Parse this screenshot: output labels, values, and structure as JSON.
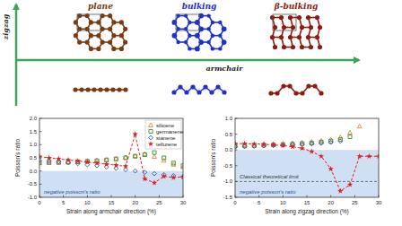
{
  "diagram": {
    "axes": {
      "vertical": "zigzag",
      "horizontal": "armchair"
    },
    "structures": [
      {
        "label": "plane",
        "color": "#7a3b12"
      },
      {
        "label": "bulking",
        "color": "#1f2fd0"
      },
      {
        "label": "β-bulking",
        "color": "#8c1d10"
      }
    ]
  },
  "chart_data": [
    {
      "type": "line",
      "x_label": "Strain along armchair direction (%)",
      "y_label": "Poisson's ratio",
      "x": [
        0,
        2,
        4,
        6,
        8,
        10,
        12,
        14,
        16,
        18,
        20,
        22,
        24,
        26,
        28,
        30
      ],
      "xlim": [
        0,
        30
      ],
      "xticks": [
        0,
        5,
        10,
        15,
        20,
        25,
        30
      ],
      "ylim": [
        -1,
        2
      ],
      "yticks": [
        {
          "value": -1,
          "label": "-1.0"
        },
        {
          "value": -0.5,
          "label": "-0.5"
        },
        {
          "value": 0,
          "label": "0.0"
        },
        {
          "value": 0.5,
          "label": "0.5"
        },
        {
          "value": 1,
          "label": "1.0"
        },
        {
          "value": 1.5,
          "label": "1.5"
        },
        {
          "value": 2,
          "label": "2.0"
        }
      ],
      "grid": false,
      "legend": "top-right",
      "negative_region": {
        "text": "negative poisson's ratio",
        "below": 0
      },
      "series": [
        {
          "name": "silicene",
          "color": "#e08a2c",
          "marker": "triangle",
          "line_style": "none",
          "values": [
            0.3,
            0.31,
            0.32,
            0.33,
            0.35,
            0.37,
            0.4,
            0.43,
            0.47,
            0.52,
            0.58,
            0.65,
            0.55,
            0.4,
            0.25,
            0.15
          ]
        },
        {
          "name": "germanene",
          "color": "#3a8a3a",
          "marker": "square",
          "line_style": "none",
          "values": [
            0.32,
            0.33,
            0.33,
            0.34,
            0.35,
            0.37,
            0.39,
            0.42,
            0.46,
            0.5,
            0.56,
            0.62,
            0.7,
            0.5,
            0.3,
            0.2
          ]
        },
        {
          "name": "stanene",
          "color": "#3050c0",
          "marker": "diamond",
          "line_style": "none",
          "values": [
            0.4,
            0.38,
            0.35,
            0.32,
            0.28,
            0.24,
            0.2,
            0.15,
            0.1,
            0.05,
            0.0,
            -0.05,
            -0.1,
            -0.14,
            -0.18,
            -0.22
          ]
        },
        {
          "name": "tellurene",
          "color": "#e02020",
          "marker": "star",
          "line_style": "dashed",
          "values": [
            0.55,
            0.5,
            0.46,
            0.42,
            0.38,
            0.34,
            0.3,
            0.26,
            0.22,
            0.18,
            1.4,
            -0.3,
            -0.45,
            -0.2,
            -0.25,
            -0.22
          ]
        }
      ]
    },
    {
      "type": "line",
      "x_label": "Strain along zigzag direction (%)",
      "y_label": "Poisson's ratio",
      "x": [
        0,
        2,
        4,
        6,
        8,
        10,
        12,
        14,
        16,
        18,
        20,
        22,
        24,
        26,
        28,
        30
      ],
      "xlim": [
        0,
        30
      ],
      "xticks": [
        0,
        5,
        10,
        15,
        20,
        25,
        30
      ],
      "ylim": [
        -1.5,
        1
      ],
      "yticks": [
        {
          "value": -1.5,
          "label": "-1.5"
        },
        {
          "value": -1,
          "label": "-1.0"
        },
        {
          "value": -0.5,
          "label": "-0.5"
        },
        {
          "value": 0,
          "label": "0.0"
        },
        {
          "value": 0.5,
          "label": "0.5"
        },
        {
          "value": 1,
          "label": "1.0"
        }
      ],
      "grid": false,
      "negative_region": {
        "text": "negative poisson's ratio",
        "below": 0
      },
      "limit": {
        "text": "Classical theoretical limit",
        "value": -1
      },
      "series": [
        {
          "name": "silicene",
          "color": "#e08a2c",
          "marker": "triangle",
          "line_style": "none",
          "values": [
            0.15,
            0.16,
            0.17,
            0.18,
            0.19,
            0.2,
            0.22,
            0.24,
            0.26,
            0.29,
            0.33,
            0.4,
            0.55,
            0.75,
            null,
            null
          ]
        },
        {
          "name": "germanene",
          "color": "#3a8a3a",
          "marker": "square",
          "line_style": "none",
          "values": [
            0.12,
            0.13,
            0.14,
            0.15,
            0.16,
            0.17,
            0.18,
            0.2,
            0.22,
            0.25,
            0.28,
            0.33,
            0.42,
            null,
            null,
            null
          ]
        },
        {
          "name": "stanene",
          "color": "#3050c0",
          "marker": "diamond",
          "line_style": "none",
          "values": [
            0.1,
            0.11,
            0.12,
            0.13,
            0.14,
            0.15,
            0.16,
            0.17,
            0.19,
            0.21,
            0.24,
            0.28,
            null,
            null,
            null,
            null
          ]
        },
        {
          "name": "tellurene",
          "color": "#e02020",
          "marker": "star",
          "line_style": "dashed",
          "values": [
            0.2,
            0.2,
            0.19,
            0.18,
            0.16,
            0.14,
            0.1,
            0.05,
            -0.05,
            -0.2,
            -0.6,
            -1.3,
            -1.1,
            -0.2,
            -0.2,
            -0.2
          ]
        }
      ]
    }
  ]
}
